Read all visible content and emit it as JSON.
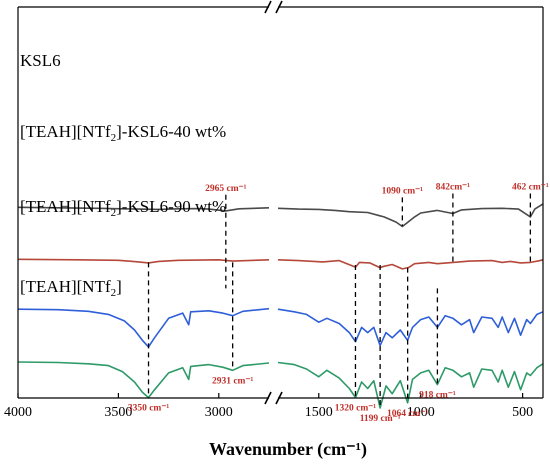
{
  "chart_data": {
    "type": "line",
    "title": "",
    "xlabel": "Wavenumber (cm⁻¹)",
    "ylabel": "",
    "x_reversed": true,
    "axis_break": [
      2750,
      1700
    ],
    "segments": [
      {
        "xlim": [
          4000,
          2750
        ]
      },
      {
        "xlim": [
          1700,
          400
        ]
      }
    ],
    "xticks": [
      4000,
      3500,
      3000,
      1500,
      1000,
      500
    ],
    "xtick_labels": [
      "4000",
      "3500",
      "3000",
      "1500",
      "1000",
      "500"
    ],
    "grid": false,
    "legend": "none",
    "series": [
      {
        "name": "KSL6",
        "label": "KSL6",
        "color": "#4a4a4a",
        "offset": 7.2,
        "points": [
          [
            4000,
            0.02
          ],
          [
            3800,
            0.0
          ],
          [
            3600,
            -0.02
          ],
          [
            3400,
            -0.05
          ],
          [
            3300,
            -0.06
          ],
          [
            3200,
            -0.04
          ],
          [
            3100,
            -0.03
          ],
          [
            3050,
            -0.05
          ],
          [
            2965,
            -0.12
          ],
          [
            2900,
            -0.04
          ],
          [
            2750,
            0.0
          ],
          [
            1700,
            -0.02
          ],
          [
            1600,
            -0.05
          ],
          [
            1500,
            -0.06
          ],
          [
            1420,
            -0.1
          ],
          [
            1350,
            -0.15
          ],
          [
            1260,
            -0.18
          ],
          [
            1180,
            -0.35
          ],
          [
            1120,
            -0.55
          ],
          [
            1090,
            -0.72
          ],
          [
            1070,
            -0.6
          ],
          [
            1030,
            -0.35
          ],
          [
            1000,
            -0.2
          ],
          [
            920,
            -0.1
          ],
          [
            842,
            -0.22
          ],
          [
            800,
            -0.08
          ],
          [
            700,
            -0.03
          ],
          [
            600,
            -0.02
          ],
          [
            520,
            -0.05
          ],
          [
            462,
            -0.35
          ],
          [
            440,
            -0.05
          ],
          [
            400,
            0.15
          ]
        ]
      },
      {
        "name": "[TEAH][NTf2]-KSL6-40 wt%",
        "label": "[TEAH][NTf",
        "label_sub": "2",
        "label_suffix": "]-KSL6-40 wt%",
        "color": "#b5483a",
        "offset": 5.2,
        "points": [
          [
            4000,
            0.02
          ],
          [
            3700,
            0.0
          ],
          [
            3500,
            -0.02
          ],
          [
            3400,
            -0.08
          ],
          [
            3350,
            -0.12
          ],
          [
            3300,
            -0.06
          ],
          [
            3200,
            -0.02
          ],
          [
            3000,
            0.0
          ],
          [
            2931,
            -0.05
          ],
          [
            2750,
            0.0
          ],
          [
            1700,
            0.0
          ],
          [
            1600,
            -0.03
          ],
          [
            1480,
            -0.08
          ],
          [
            1400,
            -0.03
          ],
          [
            1340,
            -0.22
          ],
          [
            1320,
            -0.28
          ],
          [
            1300,
            -0.1
          ],
          [
            1250,
            -0.12
          ],
          [
            1200,
            -0.3
          ],
          [
            1180,
            -0.25
          ],
          [
            1140,
            -0.18
          ],
          [
            1090,
            -0.35
          ],
          [
            1060,
            -0.3
          ],
          [
            1030,
            -0.15
          ],
          [
            960,
            -0.1
          ],
          [
            918,
            -0.15
          ],
          [
            842,
            -0.1
          ],
          [
            760,
            -0.05
          ],
          [
            650,
            -0.03
          ],
          [
            600,
            -0.1
          ],
          [
            560,
            -0.06
          ],
          [
            510,
            -0.12
          ],
          [
            462,
            -0.1
          ],
          [
            420,
            -0.04
          ],
          [
            400,
            0.0
          ]
        ]
      },
      {
        "name": "[TEAH][NTf2]-KSL6-90 wt%",
        "label": "[TEAH][NTf",
        "label_sub": "2",
        "label_suffix": "]-KSL6-90 wt%",
        "color": "#2f5fd8",
        "offset": 3.3,
        "points": [
          [
            4000,
            0.0
          ],
          [
            3800,
            -0.02
          ],
          [
            3650,
            -0.08
          ],
          [
            3550,
            -0.2
          ],
          [
            3470,
            -0.45
          ],
          [
            3420,
            -0.8
          ],
          [
            3380,
            -1.2
          ],
          [
            3350,
            -1.45
          ],
          [
            3320,
            -1.1
          ],
          [
            3250,
            -0.35
          ],
          [
            3180,
            -0.15
          ],
          [
            3150,
            -0.6
          ],
          [
            3140,
            -0.1
          ],
          [
            3050,
            -0.06
          ],
          [
            2980,
            -0.15
          ],
          [
            2931,
            -0.25
          ],
          [
            2880,
            -0.08
          ],
          [
            2750,
            0.02
          ],
          [
            1700,
            0.0
          ],
          [
            1620,
            -0.1
          ],
          [
            1560,
            -0.2
          ],
          [
            1500,
            -0.5
          ],
          [
            1460,
            -0.35
          ],
          [
            1400,
            -0.55
          ],
          [
            1350,
            -0.9
          ],
          [
            1320,
            -1.25
          ],
          [
            1290,
            -0.7
          ],
          [
            1260,
            -0.9
          ],
          [
            1230,
            -0.7
          ],
          [
            1199,
            -1.4
          ],
          [
            1170,
            -0.9
          ],
          [
            1140,
            -1.1
          ],
          [
            1100,
            -0.8
          ],
          [
            1064,
            -1.2
          ],
          [
            1040,
            -0.7
          ],
          [
            1000,
            -0.4
          ],
          [
            960,
            -0.3
          ],
          [
            918,
            -0.7
          ],
          [
            880,
            -0.25
          ],
          [
            842,
            -0.35
          ],
          [
            800,
            -0.6
          ],
          [
            760,
            -0.4
          ],
          [
            740,
            -0.9
          ],
          [
            700,
            -0.3
          ],
          [
            650,
            -0.35
          ],
          [
            620,
            -0.7
          ],
          [
            600,
            -0.3
          ],
          [
            570,
            -0.9
          ],
          [
            540,
            -0.35
          ],
          [
            510,
            -1.0
          ],
          [
            480,
            -0.4
          ],
          [
            462,
            -0.55
          ],
          [
            430,
            -0.2
          ],
          [
            400,
            -0.1
          ]
        ]
      },
      {
        "name": "[TEAH][NTf2]",
        "label": "[TEAH][NTf",
        "label_sub": "2",
        "label_suffix": "]",
        "color": "#2e9a68",
        "offset": 1.25,
        "points": [
          [
            4000,
            0.02
          ],
          [
            3800,
            0.0
          ],
          [
            3650,
            -0.05
          ],
          [
            3550,
            -0.12
          ],
          [
            3480,
            -0.35
          ],
          [
            3420,
            -0.75
          ],
          [
            3380,
            -1.15
          ],
          [
            3350,
            -1.35
          ],
          [
            3320,
            -1.05
          ],
          [
            3250,
            -0.4
          ],
          [
            3180,
            -0.2
          ],
          [
            3150,
            -0.65
          ],
          [
            3140,
            -0.15
          ],
          [
            3050,
            -0.08
          ],
          [
            2980,
            -0.18
          ],
          [
            2931,
            -0.3
          ],
          [
            2880,
            -0.12
          ],
          [
            2750,
            -0.02
          ],
          [
            1700,
            0.0
          ],
          [
            1620,
            -0.08
          ],
          [
            1560,
            -0.25
          ],
          [
            1500,
            -0.55
          ],
          [
            1460,
            -0.3
          ],
          [
            1400,
            -0.6
          ],
          [
            1350,
            -1.0
          ],
          [
            1320,
            -1.35
          ],
          [
            1290,
            -0.75
          ],
          [
            1260,
            -1.0
          ],
          [
            1230,
            -0.7
          ],
          [
            1199,
            -1.75
          ],
          [
            1170,
            -0.9
          ],
          [
            1140,
            -1.2
          ],
          [
            1100,
            -0.7
          ],
          [
            1064,
            -1.55
          ],
          [
            1040,
            -0.65
          ],
          [
            1000,
            -0.4
          ],
          [
            960,
            -0.3
          ],
          [
            918,
            -0.85
          ],
          [
            880,
            -0.2
          ],
          [
            842,
            -0.3
          ],
          [
            800,
            -0.55
          ],
          [
            760,
            -0.4
          ],
          [
            740,
            -0.95
          ],
          [
            700,
            -0.25
          ],
          [
            650,
            -0.3
          ],
          [
            620,
            -0.75
          ],
          [
            600,
            -0.3
          ],
          [
            570,
            -0.95
          ],
          [
            540,
            -0.35
          ],
          [
            510,
            -1.05
          ],
          [
            480,
            -0.4
          ],
          [
            462,
            -0.5
          ],
          [
            430,
            -0.2
          ],
          [
            400,
            -0.05
          ]
        ]
      }
    ],
    "annotations": [
      {
        "label": "2965 cm⁻¹",
        "x": 2965,
        "y_top": 7.7,
        "y_bottom": 4.1,
        "text_pos": "top"
      },
      {
        "label": "1090 cm⁻¹",
        "x": 1090,
        "y_top": 7.6,
        "y_bottom": 6.5,
        "text_pos": "top"
      },
      {
        "label": "842cm⁻¹",
        "x": 842,
        "y_top": 7.75,
        "y_bottom": 5.1,
        "text_pos": "top"
      },
      {
        "label": "462 cm⁻¹",
        "x": 462,
        "y_top": 7.75,
        "y_bottom": 5.1,
        "text_pos": "top"
      },
      {
        "label": "3350 cm⁻¹",
        "x": 3350,
        "y_top": 5.1,
        "y_bottom": -0.1,
        "text_pos": "bottom"
      },
      {
        "label": "2931 cm⁻¹",
        "x": 2931,
        "y_top": 5.1,
        "y_bottom": 0.95,
        "text_pos": "bottom"
      },
      {
        "label": "1320 cm⁻¹",
        "x": 1320,
        "y_top": 5.0,
        "y_bottom": -0.1,
        "text_pos": "bottom"
      },
      {
        "label": "1199 cm⁻¹",
        "x": 1199,
        "y_top": 5.0,
        "y_bottom": -0.5,
        "text_pos": "bottom"
      },
      {
        "label": "1064 cm⁻¹",
        "x": 1064,
        "y_top": 4.9,
        "y_bottom": -0.3,
        "text_pos": "bottom"
      },
      {
        "label": "918 cm⁻¹",
        "x": 918,
        "y_top": 4.1,
        "y_bottom": 0.4,
        "text_pos": "bottom"
      }
    ],
    "annotation_color": "#c0302a"
  }
}
